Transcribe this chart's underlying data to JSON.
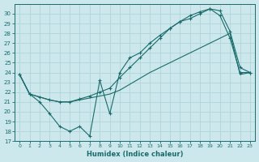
{
  "xlabel": "Humidex (Indice chaleur)",
  "background_color": "#cce8ec",
  "grid_color": "#b0d4d8",
  "line_color": "#1a6b6b",
  "xlim": [
    -0.5,
    23.5
  ],
  "ylim": [
    17,
    31
  ],
  "yticks": [
    17,
    18,
    19,
    20,
    21,
    22,
    23,
    24,
    25,
    26,
    27,
    28,
    29,
    30
  ],
  "xticks": [
    0,
    1,
    2,
    3,
    4,
    5,
    6,
    7,
    8,
    9,
    10,
    11,
    12,
    13,
    14,
    15,
    16,
    17,
    18,
    19,
    20,
    21,
    22,
    23
  ],
  "series1_x": [
    0,
    1,
    2,
    3,
    4,
    5,
    6,
    7,
    8,
    9,
    10,
    11,
    12,
    13,
    14,
    15,
    16,
    17,
    18,
    19,
    20,
    21,
    22,
    23
  ],
  "series1_y": [
    23.8,
    21.8,
    21.0,
    19.8,
    18.5,
    18.0,
    18.5,
    17.5,
    23.2,
    19.8,
    24.0,
    25.5,
    26.0,
    27.0,
    27.8,
    28.5,
    29.2,
    29.5,
    30.0,
    30.5,
    29.8,
    27.5,
    24.0,
    24.0
  ],
  "series2_x": [
    0,
    1,
    2,
    3,
    4,
    5,
    6,
    7,
    8,
    9,
    10,
    11,
    12,
    13,
    14,
    15,
    16,
    17,
    18,
    19,
    20,
    21,
    22,
    23
  ],
  "series2_y": [
    23.8,
    21.8,
    21.5,
    21.2,
    21.0,
    21.0,
    21.2,
    21.4,
    21.6,
    21.8,
    22.2,
    22.8,
    23.4,
    24.0,
    24.5,
    25.0,
    25.5,
    26.0,
    26.5,
    27.0,
    27.5,
    28.0,
    23.8,
    24.0
  ],
  "series3_x": [
    0,
    1,
    2,
    3,
    4,
    5,
    6,
    7,
    8,
    9,
    10,
    11,
    12,
    13,
    14,
    15,
    16,
    17,
    18,
    19,
    20,
    21,
    22,
    23
  ],
  "series3_y": [
    23.8,
    21.8,
    21.5,
    21.2,
    21.0,
    21.0,
    21.3,
    21.6,
    22.0,
    22.4,
    23.5,
    24.5,
    25.5,
    26.5,
    27.5,
    28.5,
    29.2,
    29.8,
    30.2,
    30.5,
    30.3,
    28.2,
    24.5,
    24.0
  ]
}
